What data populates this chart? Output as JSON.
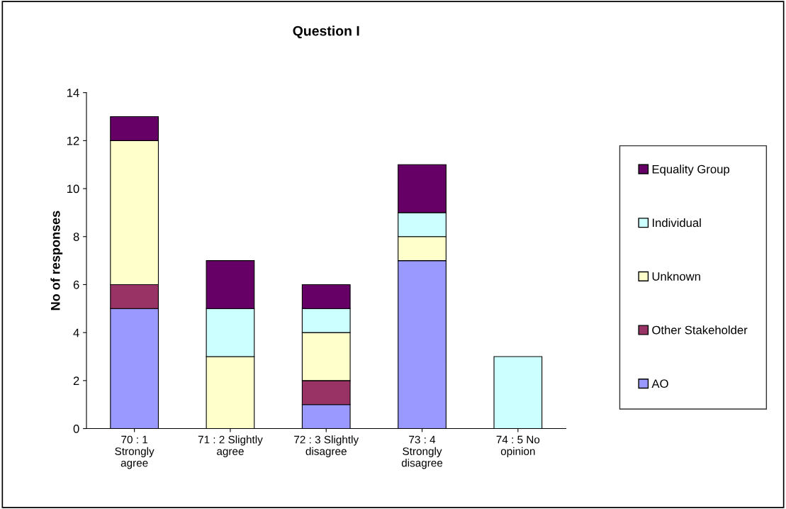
{
  "chart_data": {
    "type": "bar",
    "title": "Question I",
    "ylabel": "No of responses",
    "categories": [
      "70 : 1\nStrongly\nagree",
      "71 : 2 Slightly\nagree",
      "72 : 3 Slightly\ndisagree",
      "73 : 4\nStrongly\ndisagree",
      "74 : 5 No\nopinion"
    ],
    "stacked": true,
    "series": [
      {
        "name": "AO",
        "color": "#9999ff",
        "values": [
          5,
          0,
          1,
          7,
          0
        ]
      },
      {
        "name": "Other Stakeholder",
        "color": "#993366",
        "values": [
          1,
          0,
          1,
          0,
          0
        ]
      },
      {
        "name": "Unknown",
        "color": "#ffffcc",
        "values": [
          6,
          3,
          2,
          1,
          0
        ]
      },
      {
        "name": "Individual",
        "color": "#ccffff",
        "values": [
          0,
          2,
          1,
          1,
          3
        ]
      },
      {
        "name": "Equality Group",
        "color": "#660066",
        "values": [
          1,
          2,
          1,
          2,
          0
        ]
      }
    ],
    "ylim": [
      0,
      14
    ],
    "yticks": [
      0,
      2,
      4,
      6,
      8,
      10,
      12,
      14
    ],
    "grid": false,
    "legend": "right"
  }
}
